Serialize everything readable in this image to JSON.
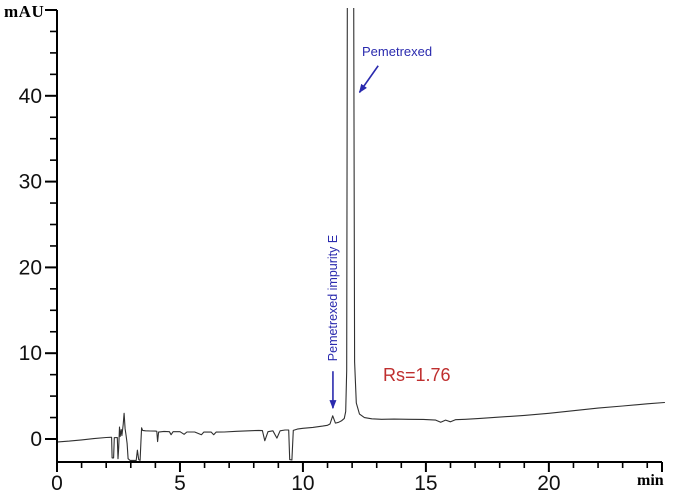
{
  "figure": {
    "y_axis_title": "mAU",
    "x_axis_title": "min"
  },
  "annotations": {
    "peak_label": {
      "text": "Pemetrexed",
      "color": "#2a2aae"
    },
    "impurity_label": {
      "text": "Pemetrexed impurity E",
      "color": "#2a2aae"
    },
    "resolution_label": {
      "text": "Rs=1.76",
      "color": "#bf2f2f"
    }
  },
  "chart_data": {
    "type": "line",
    "title": "",
    "xlabel": "min",
    "ylabel": "mAU",
    "xlim": [
      0,
      24.7
    ],
    "ylim": [
      -2.9,
      50
    ],
    "x_major_ticks": [
      0,
      5,
      10,
      15,
      20
    ],
    "x_minor_step": 1,
    "y_major_ticks": [
      0,
      10,
      20,
      30,
      40
    ],
    "y_axis_top": 50,
    "y_minor_step": 2.5,
    "grid": false,
    "legend": false,
    "trace_color": "#303030",
    "series": [
      {
        "name": "detector-signal",
        "points": [
          [
            0,
            -0.35
          ],
          [
            0.5,
            -0.25
          ],
          [
            1.0,
            -0.1
          ],
          [
            1.5,
            0.05
          ],
          [
            2.0,
            0.18
          ],
          [
            2.18,
            0.2
          ],
          [
            2.22,
            0.2
          ],
          [
            2.24,
            -2.2
          ],
          [
            2.3,
            -2.2
          ],
          [
            2.33,
            0.15
          ],
          [
            2.45,
            0.18
          ],
          [
            2.48,
            -2.3
          ],
          [
            2.51,
            -1.0
          ],
          [
            2.54,
            1.4
          ],
          [
            2.57,
            0.3
          ],
          [
            2.61,
            1.1
          ],
          [
            2.64,
            0.4
          ],
          [
            2.69,
            1.7
          ],
          [
            2.73,
            3.0
          ],
          [
            2.77,
            1.2
          ],
          [
            2.81,
            0.4
          ],
          [
            2.85,
            -0.5
          ],
          [
            2.89,
            -2.3
          ],
          [
            2.97,
            -2.5
          ],
          [
            3.12,
            -2.5
          ],
          [
            3.22,
            -2.5
          ],
          [
            3.27,
            -1.3
          ],
          [
            3.32,
            -2.4
          ],
          [
            3.38,
            -2.5
          ],
          [
            3.41,
            -0.4
          ],
          [
            3.44,
            1.3
          ],
          [
            3.48,
            1.0
          ],
          [
            3.6,
            0.95
          ],
          [
            3.8,
            0.93
          ],
          [
            4.0,
            0.92
          ],
          [
            4.06,
            0.9
          ],
          [
            4.09,
            -0.3
          ],
          [
            4.13,
            0.8
          ],
          [
            4.35,
            0.88
          ],
          [
            4.57,
            0.85
          ],
          [
            4.64,
            0.5
          ],
          [
            4.72,
            0.85
          ],
          [
            5.0,
            0.85
          ],
          [
            5.17,
            0.55
          ],
          [
            5.28,
            0.82
          ],
          [
            5.6,
            0.82
          ],
          [
            5.87,
            0.5
          ],
          [
            5.97,
            0.8
          ],
          [
            6.27,
            0.8
          ],
          [
            6.37,
            0.5
          ],
          [
            6.47,
            0.8
          ],
          [
            6.8,
            0.82
          ],
          [
            7.3,
            0.9
          ],
          [
            7.8,
            0.95
          ],
          [
            8.2,
            1.0
          ],
          [
            8.35,
            0.98
          ],
          [
            8.45,
            -0.2
          ],
          [
            8.58,
            0.85
          ],
          [
            8.78,
            0.95
          ],
          [
            8.94,
            0.1
          ],
          [
            9.07,
            0.95
          ],
          [
            9.27,
            1.05
          ],
          [
            9.42,
            1.05
          ],
          [
            9.46,
            -2.4
          ],
          [
            9.55,
            -2.45
          ],
          [
            9.61,
            1.0
          ],
          [
            9.77,
            1.15
          ],
          [
            10.0,
            1.25
          ],
          [
            10.4,
            1.35
          ],
          [
            10.8,
            1.5
          ],
          [
            11.0,
            1.6
          ],
          [
            11.1,
            1.75
          ],
          [
            11.21,
            2.7
          ],
          [
            11.32,
            1.85
          ],
          [
            11.45,
            1.95
          ],
          [
            11.58,
            2.15
          ],
          [
            11.68,
            2.4
          ],
          [
            11.74,
            3.2
          ],
          [
            11.78,
            8.0
          ],
          [
            11.81,
            56
          ],
          [
            12.06,
            56
          ],
          [
            12.1,
            9.0
          ],
          [
            12.17,
            4.2
          ],
          [
            12.3,
            2.9
          ],
          [
            12.5,
            2.5
          ],
          [
            12.8,
            2.35
          ],
          [
            13.2,
            2.3
          ],
          [
            13.7,
            2.32
          ],
          [
            14.3,
            2.3
          ],
          [
            14.9,
            2.28
          ],
          [
            15.4,
            2.2
          ],
          [
            15.6,
            1.95
          ],
          [
            15.8,
            2.2
          ],
          [
            16.0,
            2.0
          ],
          [
            16.2,
            2.25
          ],
          [
            16.6,
            2.3
          ],
          [
            17.2,
            2.4
          ],
          [
            18.0,
            2.55
          ],
          [
            19.0,
            2.75
          ],
          [
            20.0,
            3.0
          ],
          [
            21.0,
            3.3
          ],
          [
            22.0,
            3.6
          ],
          [
            23.0,
            3.85
          ],
          [
            24.0,
            4.1
          ],
          [
            24.7,
            4.25
          ]
        ]
      }
    ],
    "peaks": [
      {
        "name": "Pemetrexed impurity E",
        "rt_min": 11.2,
        "apex_mAU": 2.7
      },
      {
        "name": "Pemetrexed",
        "rt_min": 12.0,
        "apex_mAU": "off-scale (>50)"
      }
    ],
    "resolution": {
      "text": "Rs=1.76",
      "value": 1.76
    },
    "arrows": [
      {
        "name": "pemetrexed-arrow",
        "from": [
          13.06,
          43.5
        ],
        "to": [
          12.3,
          40.4
        ]
      },
      {
        "name": "impurity-arrow",
        "from": [
          11.22,
          7.9
        ],
        "to": [
          11.22,
          3.6
        ]
      }
    ]
  }
}
